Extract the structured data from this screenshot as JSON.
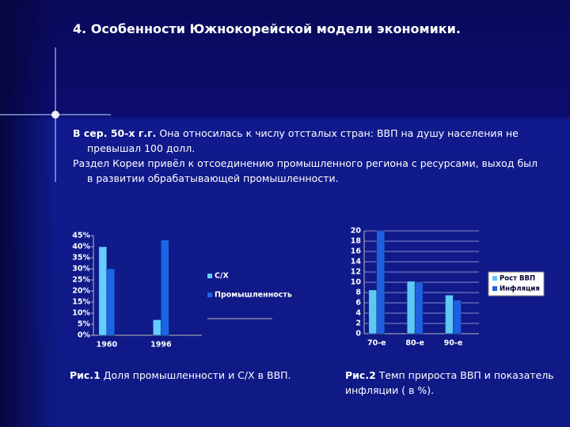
{
  "title": "4. Особенности Южнокорейской модели экономики.",
  "paragraphs": [
    {
      "lead": "В сер. 50-х г.г.",
      "text": "Она относилась к числу отсталых стран: ВВП на душу населения не превышал 100 долл."
    },
    {
      "text": "Раздел Кореи привёл к отсоединению промышленного региона с ресурсами, выход был в развитии обрабатывающей промышленности."
    }
  ],
  "captions": [
    {
      "lead": "Рис.1",
      "text": "Доля промышленности и С/Х в ВВП."
    },
    {
      "lead": "Рис.2",
      "text": "Темп прироста ВВП и показатель инфляции ( в %)."
    }
  ],
  "chart_data": [
    {
      "type": "bar",
      "categories": [
        "1960",
        "1996"
      ],
      "series": [
        {
          "name": "С/Х",
          "color": "#66ccff",
          "values": [
            40,
            7
          ]
        },
        {
          "name": "Промышленность",
          "color": "#1a66e6",
          "values": [
            30,
            43
          ]
        }
      ],
      "ylim": [
        0,
        45
      ],
      "yticks": [
        {
          "value": 0,
          "label": "0%"
        },
        {
          "value": 5,
          "label": "5%"
        },
        {
          "value": 10,
          "label": "10%"
        },
        {
          "value": 15,
          "label": "15%"
        },
        {
          "value": 20,
          "label": "20%"
        },
        {
          "value": 25,
          "label": "25%"
        },
        {
          "value": 30,
          "label": "30%"
        },
        {
          "value": 35,
          "label": "35%"
        },
        {
          "value": 40,
          "label": "40%"
        },
        {
          "value": 45,
          "label": "45%"
        }
      ],
      "grid": false
    },
    {
      "type": "bar",
      "categories": [
        "70-е",
        "80-е",
        "90-е"
      ],
      "series": [
        {
          "name": "Рост ВВП",
          "color": "#5ec8f5",
          "values": [
            8.5,
            10.2,
            7.5
          ]
        },
        {
          "name": "Инфляция",
          "color": "#1f5fe0",
          "values": [
            20,
            10,
            6.5
          ]
        }
      ],
      "ylim": [
        0,
        20
      ],
      "yticks": [
        0,
        2,
        4,
        6,
        8,
        10,
        12,
        14,
        16,
        18,
        20
      ],
      "grid": true
    }
  ]
}
